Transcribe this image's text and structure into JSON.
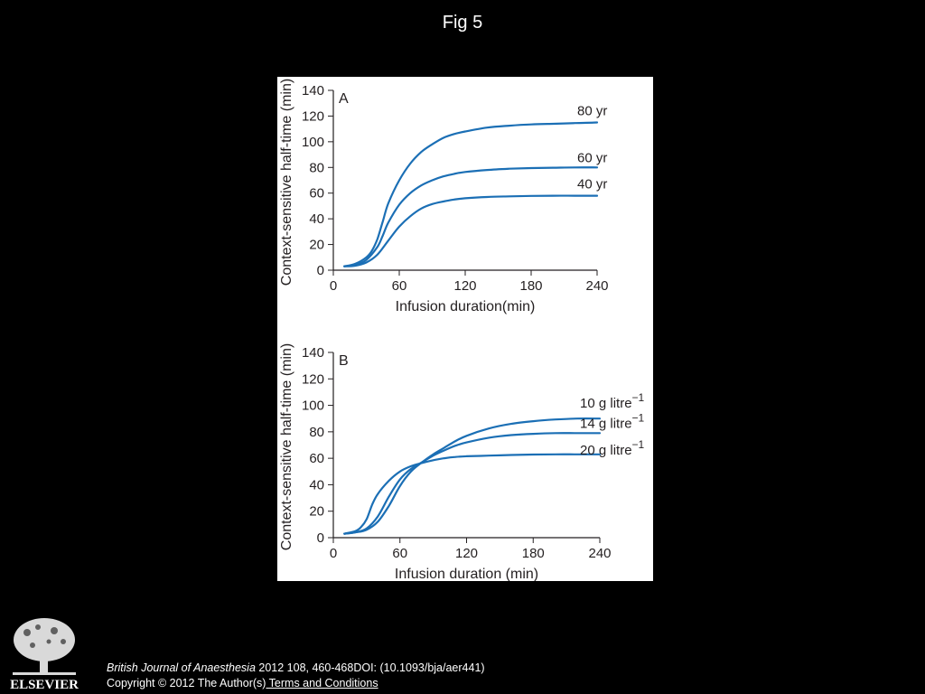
{
  "slide": {
    "title": "Fig 5"
  },
  "colors": {
    "background": "#000000",
    "panel": "#ffffff",
    "line": "#1b6fb5",
    "axis": "#231f20"
  },
  "chart_data": [
    {
      "type": "line",
      "panel_label": "A",
      "title": "",
      "xlabel": "Infusion duration(min)",
      "ylabel": "Context-sensitive half-time (min)",
      "xlim": [
        0,
        240
      ],
      "ylim": [
        0,
        140
      ],
      "xticks": [
        0,
        60,
        120,
        180,
        240
      ],
      "yticks": [
        0,
        20,
        40,
        60,
        80,
        100,
        120,
        140
      ],
      "grid": false,
      "series": [
        {
          "name": "80 yr",
          "x": [
            10,
            20,
            30,
            35,
            40,
            45,
            50,
            60,
            70,
            80,
            90,
            100,
            110,
            120,
            140,
            160,
            180,
            200,
            220,
            240
          ],
          "y": [
            3,
            5,
            10,
            15,
            24,
            38,
            52,
            70,
            83,
            92,
            98,
            103,
            106,
            108,
            111,
            112.5,
            113.5,
            114,
            114.5,
            115
          ]
        },
        {
          "name": "60 yr",
          "x": [
            10,
            20,
            30,
            40,
            45,
            50,
            60,
            70,
            80,
            90,
            100,
            110,
            120,
            140,
            160,
            180,
            200,
            220,
            240
          ],
          "y": [
            3,
            4,
            8,
            18,
            27,
            37,
            51,
            60,
            66,
            70,
            73,
            75,
            76.5,
            78,
            79,
            79.5,
            79.8,
            80,
            80
          ]
        },
        {
          "name": "40 yr",
          "x": [
            10,
            20,
            30,
            40,
            50,
            60,
            70,
            80,
            90,
            100,
            110,
            120,
            140,
            160,
            180,
            200,
            220,
            240
          ],
          "y": [
            3,
            3.5,
            6,
            12,
            23,
            34,
            42,
            48,
            51.5,
            53.5,
            55,
            56,
            57,
            57.5,
            57.8,
            58,
            58,
            58
          ]
        }
      ]
    },
    {
      "type": "line",
      "panel_label": "B",
      "title": "",
      "xlabel": "Infusion duration (min)",
      "ylabel": "Context-sensitive half-time  (min)",
      "xlim": [
        0,
        240
      ],
      "ylim": [
        0,
        140
      ],
      "xticks": [
        0,
        60,
        120,
        180,
        240
      ],
      "yticks": [
        0,
        20,
        40,
        60,
        80,
        100,
        120,
        140
      ],
      "grid": false,
      "series": [
        {
          "name": "10 g litre−1",
          "x": [
            10,
            20,
            30,
            40,
            50,
            60,
            70,
            80,
            90,
            100,
            110,
            120,
            140,
            160,
            180,
            200,
            220,
            240
          ],
          "y": [
            3,
            4,
            6,
            12,
            24,
            39,
            50,
            57,
            63,
            68,
            73,
            77,
            82.5,
            86,
            88,
            89.3,
            90,
            90
          ]
        },
        {
          "name": "14 g litre−1",
          "x": [
            10,
            20,
            30,
            40,
            50,
            60,
            70,
            80,
            90,
            100,
            110,
            120,
            140,
            160,
            180,
            200,
            220,
            240
          ],
          "y": [
            3,
            4,
            7,
            16,
            31,
            44,
            52,
            57,
            62,
            66,
            69.5,
            72,
            75.5,
            77.5,
            78.5,
            79,
            79,
            79
          ]
        },
        {
          "name": "20 g litre−1",
          "x": [
            10,
            20,
            25,
            30,
            35,
            40,
            50,
            60,
            70,
            80,
            90,
            100,
            110,
            120,
            140,
            160,
            180,
            200,
            220,
            240
          ],
          "y": [
            3,
            5,
            8,
            14,
            25,
            33,
            43,
            50,
            54,
            56.5,
            58.5,
            60,
            61,
            61.5,
            62,
            62.5,
            62.8,
            63,
            63,
            63
          ]
        }
      ]
    }
  ],
  "footer": {
    "publisher_logo_text": "ELSEVIER",
    "journal": "British Journal of Anaesthesia",
    "citation": " 2012 108, 460-468DOI: (10.1093/bja/aer441)",
    "copyright": "Copyright © 2012 The Author(s)",
    "terms_link": " Terms and Conditions"
  }
}
